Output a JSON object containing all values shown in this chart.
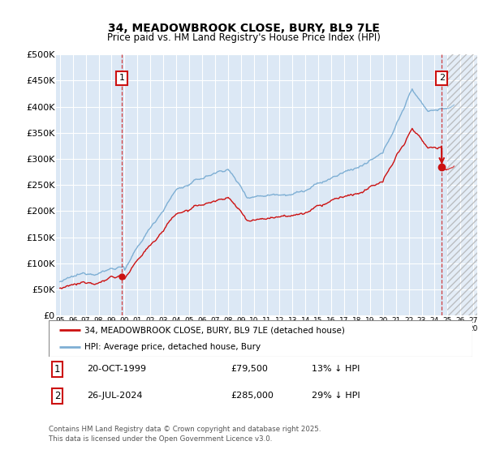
{
  "title": "34, MEADOWBROOK CLOSE, BURY, BL9 7LE",
  "subtitle": "Price paid vs. HM Land Registry's House Price Index (HPI)",
  "ylabel_ticks": [
    "£0",
    "£50K",
    "£100K",
    "£150K",
    "£200K",
    "£250K",
    "£300K",
    "£350K",
    "£400K",
    "£450K",
    "£500K"
  ],
  "ytick_values": [
    0,
    50000,
    100000,
    150000,
    200000,
    250000,
    300000,
    350000,
    400000,
    450000,
    500000
  ],
  "ylim": [
    0,
    500000
  ],
  "xlim_start": 1994.7,
  "xlim_end": 2027.3,
  "bg_color": "#ffffff",
  "plot_bg_color": "#dce8f5",
  "grid_color": "#ffffff",
  "hpi_color": "#7eafd4",
  "price_color": "#cc1111",
  "marker1_year": 1999.8,
  "marker1_price": 79500,
  "marker2_year": 2024.55,
  "marker2_price": 285000,
  "legend_label_red": "34, MEADOWBROOK CLOSE, BURY, BL9 7LE (detached house)",
  "legend_label_blue": "HPI: Average price, detached house, Bury",
  "footer": "Contains HM Land Registry data © Crown copyright and database right 2025.\nThis data is licensed under the Open Government Licence v3.0.",
  "hatch_start": 2025.0,
  "hatch_end": 2027.3
}
